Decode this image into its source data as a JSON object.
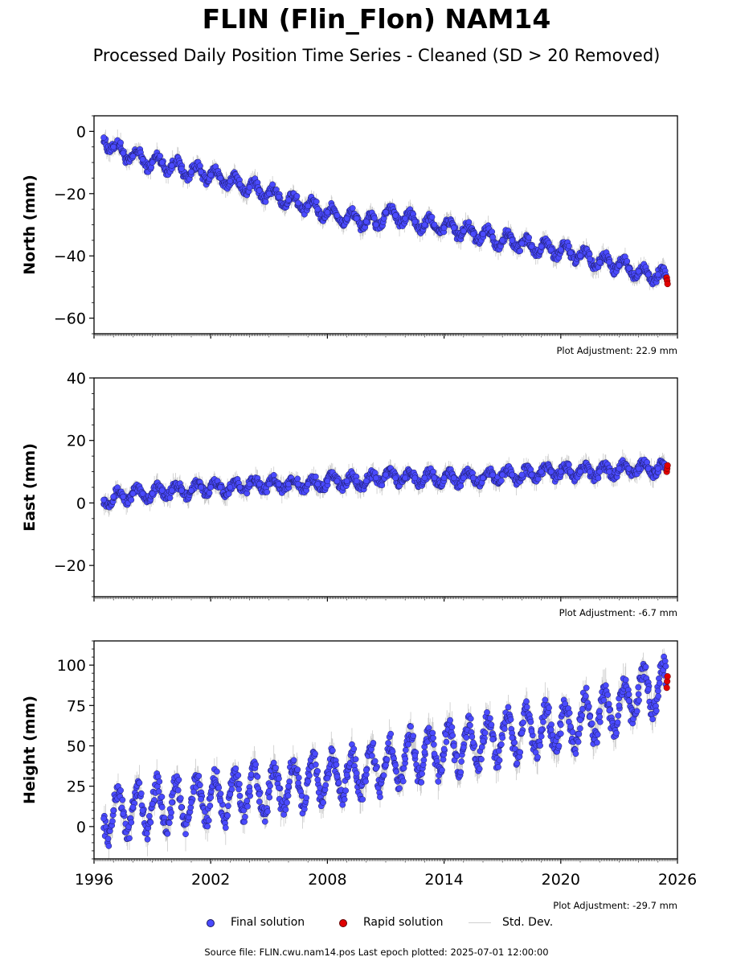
{
  "header": {
    "title": "FLIN (Flin_Flon) NAM14",
    "subtitle": "Processed Daily Position Time Series - Cleaned (SD > 20 Removed)"
  },
  "legend": {
    "final_label": "Final solution",
    "rapid_label": "Rapid solution",
    "std_label": "Std. Dev."
  },
  "footer": {
    "source": "Source file: FLIN.cwu.nam14.pos  Last epoch plotted: 2025-07-01 12:00:00"
  },
  "colors": {
    "final": "#4a4aff",
    "final_edge": "#1a1a60",
    "rapid": "#e00000",
    "std": "#b8b8b8"
  },
  "chart_data": [
    {
      "type": "scatter",
      "ylabel": "North (mm)",
      "adjustment": "Plot Adjustment: 22.9 mm",
      "xlim": [
        1996,
        2026
      ],
      "ylim": [
        -65,
        5
      ],
      "yticks": [
        0,
        -20,
        -40,
        -60
      ],
      "ytick_labels": [
        "0",
        "−20",
        "−40",
        "−60"
      ],
      "series": [
        {
          "name": "Final solution",
          "kind": "final",
          "x": [
            1996.5,
            1997.0,
            1997.5,
            1998.0,
            1998.5,
            1999.0,
            1999.5,
            2000.0,
            2000.5,
            2001.0,
            2001.5,
            2002.0,
            2002.5,
            2003.0,
            2003.5,
            2004.0,
            2004.5,
            2005.0,
            2005.5,
            2006.0,
            2006.5,
            2007.0,
            2007.5,
            2008.0,
            2008.5,
            2009.0,
            2009.5,
            2010.0,
            2010.5,
            2011.0,
            2011.5,
            2012.0,
            2012.5,
            2013.0,
            2013.5,
            2014.0,
            2014.5,
            2015.0,
            2015.5,
            2016.0,
            2016.5,
            2017.0,
            2017.5,
            2018.0,
            2018.5,
            2019.0,
            2019.5,
            2020.0,
            2020.5,
            2021.0,
            2021.5,
            2022.0,
            2022.5,
            2023.0,
            2023.5,
            2024.0,
            2024.5,
            2025.0,
            2025.4
          ],
          "y": [
            -2,
            -5,
            -7,
            -8,
            -9,
            -10,
            -10,
            -11,
            -12,
            -13,
            -13,
            -14,
            -15,
            -16,
            -17,
            -18,
            -19,
            -20,
            -21,
            -22,
            -23,
            -24,
            -25,
            -26,
            -27,
            -28,
            -28,
            -29,
            -30,
            -26,
            -27,
            -28,
            -29,
            -30,
            -30,
            -31,
            -31,
            -32,
            -33,
            -33,
            -34,
            -35,
            -35,
            -36,
            -37,
            -37,
            -38,
            -38,
            -39,
            -40,
            -41,
            -42,
            -42,
            -43,
            -44,
            -45,
            -46,
            -46,
            -47
          ]
        },
        {
          "name": "Rapid solution",
          "kind": "rapid",
          "x": [
            2025.45,
            2025.47,
            2025.49
          ],
          "y": [
            -47,
            -48,
            -49
          ]
        }
      ]
    },
    {
      "type": "scatter",
      "ylabel": "East (mm)",
      "adjustment": "Plot Adjustment: -6.7 mm",
      "xlim": [
        1996,
        2026
      ],
      "ylim": [
        -30,
        40
      ],
      "yticks": [
        40,
        20,
        0,
        -20
      ],
      "ytick_labels": [
        "40",
        "20",
        "0",
        "−20"
      ],
      "series": [
        {
          "name": "Final solution",
          "kind": "final",
          "x": [
            1996.5,
            1997.0,
            1997.5,
            1998.0,
            1998.5,
            1999.0,
            1999.5,
            2000.0,
            2000.5,
            2001.0,
            2001.5,
            2002.0,
            2002.5,
            2003.0,
            2003.5,
            2004.0,
            2004.5,
            2005.0,
            2005.5,
            2006.0,
            2006.5,
            2007.0,
            2007.5,
            2008.0,
            2008.5,
            2009.0,
            2009.5,
            2010.0,
            2010.5,
            2011.0,
            2011.5,
            2012.0,
            2012.5,
            2013.0,
            2013.5,
            2014.0,
            2014.5,
            2015.0,
            2015.5,
            2016.0,
            2016.5,
            2017.0,
            2017.5,
            2018.0,
            2018.5,
            2019.0,
            2019.5,
            2020.0,
            2020.5,
            2021.0,
            2021.5,
            2022.0,
            2022.5,
            2023.0,
            2023.5,
            2024.0,
            2024.5,
            2025.0,
            2025.4
          ],
          "y": [
            1,
            2,
            2,
            3,
            3,
            3,
            4,
            4,
            4,
            4,
            5,
            5,
            5,
            5,
            5,
            6,
            6,
            6,
            6,
            6,
            6,
            6,
            6,
            7,
            7,
            7,
            7,
            7,
            8,
            9,
            8,
            8,
            8,
            8,
            8,
            8,
            8,
            8,
            8,
            8,
            9,
            9,
            9,
            9,
            9,
            10,
            10,
            10,
            10,
            10,
            10,
            10,
            10,
            11,
            11,
            11,
            11,
            11,
            11
          ]
        },
        {
          "name": "Rapid solution",
          "kind": "rapid",
          "x": [
            2025.45,
            2025.47,
            2025.49
          ],
          "y": [
            10,
            11,
            12
          ]
        }
      ]
    },
    {
      "type": "scatter",
      "ylabel": "Height (mm)",
      "adjustment": "Plot Adjustment: -29.7 mm",
      "xlim": [
        1996,
        2026
      ],
      "ylim": [
        -20,
        115
      ],
      "yticks": [
        100,
        75,
        50,
        25,
        0
      ],
      "ytick_labels": [
        "100",
        "75",
        "50",
        "25",
        "0"
      ],
      "xticks": [
        1996,
        2002,
        2008,
        2014,
        2020,
        2026
      ],
      "xtick_labels": [
        "1996",
        "2002",
        "2008",
        "2014",
        "2020",
        "2026"
      ],
      "series": [
        {
          "name": "Final solution",
          "kind": "final",
          "x": [
            1996.5,
            1997.0,
            1997.5,
            1998.0,
            1998.5,
            1999.0,
            1999.5,
            2000.0,
            2000.5,
            2001.0,
            2001.5,
            2002.0,
            2002.5,
            2003.0,
            2003.5,
            2004.0,
            2004.5,
            2005.0,
            2005.5,
            2006.0,
            2006.5,
            2007.0,
            2007.5,
            2008.0,
            2008.5,
            2009.0,
            2009.5,
            2010.0,
            2010.5,
            2011.0,
            2011.5,
            2012.0,
            2012.5,
            2013.0,
            2013.5,
            2014.0,
            2014.5,
            2015.0,
            2015.5,
            2016.0,
            2016.5,
            2017.0,
            2017.5,
            2018.0,
            2018.5,
            2019.0,
            2019.5,
            2020.0,
            2020.5,
            2021.0,
            2021.5,
            2022.0,
            2022.5,
            2023.0,
            2023.5,
            2024.0,
            2024.5,
            2025.0,
            2025.4
          ],
          "y": [
            5,
            10,
            8,
            12,
            10,
            14,
            12,
            15,
            12,
            15,
            17,
            18,
            16,
            20,
            19,
            22,
            20,
            22,
            24,
            25,
            27,
            28,
            29,
            30,
            31,
            32,
            33,
            35,
            36,
            38,
            38,
            42,
            44,
            46,
            45,
            48,
            50,
            49,
            52,
            53,
            54,
            55,
            55,
            58,
            59,
            60,
            60,
            63,
            62,
            66,
            68,
            68,
            72,
            75,
            78,
            82,
            85,
            84,
            88
          ]
        },
        {
          "name": "Rapid solution",
          "kind": "rapid",
          "x": [
            2025.45,
            2025.47,
            2025.49
          ],
          "y": [
            86,
            90,
            93
          ]
        }
      ]
    }
  ]
}
